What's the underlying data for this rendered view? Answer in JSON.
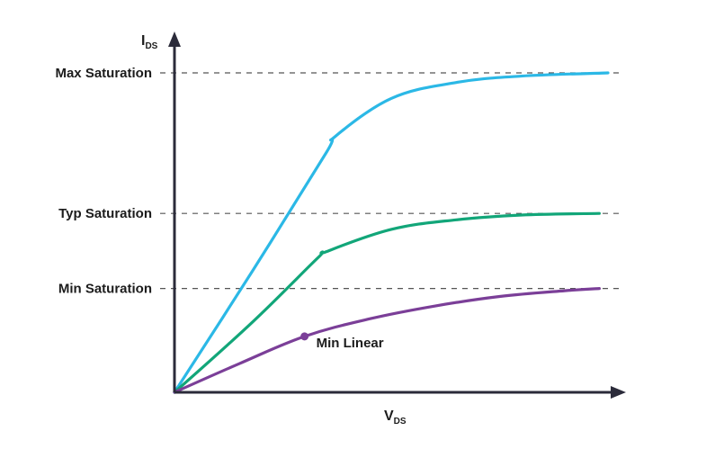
{
  "chart_data": {
    "type": "line",
    "xlabel": {
      "main": "V",
      "sub": "DS"
    },
    "ylabel": {
      "main": "I",
      "sub": "DS"
    },
    "y_ticks": [
      {
        "label": "Max Saturation",
        "value": 1.0
      },
      {
        "label": "Typ Saturation",
        "value": 0.56
      },
      {
        "label": "Min Saturation",
        "value": 0.325
      }
    ],
    "xlim": [
      0,
      1
    ],
    "ylim": [
      0,
      1
    ],
    "grid": "dashed lines at saturation levels",
    "series": [
      {
        "color": "#2bb8e6",
        "x": [
          0,
          0.18,
          0.35,
          0.37,
          0.5,
          0.65,
          0.8,
          1.0
        ],
        "y": [
          0,
          0.38,
          0.75,
          0.8,
          0.92,
          0.97,
          0.99,
          1.0
        ]
      },
      {
        "color": "#12a679",
        "x": [
          0,
          0.18,
          0.33,
          0.35,
          0.5,
          0.65,
          0.8,
          0.98
        ],
        "y": [
          0,
          0.22,
          0.42,
          0.44,
          0.51,
          0.54,
          0.555,
          0.56
        ]
      },
      {
        "color": "#7b3f98",
        "x": [
          0,
          0.15,
          0.3,
          0.45,
          0.6,
          0.75,
          0.9,
          0.98
        ],
        "y": [
          0,
          0.09,
          0.175,
          0.23,
          0.27,
          0.3,
          0.318,
          0.325
        ]
      }
    ],
    "annotations": [
      {
        "text": "Min Linear",
        "series": 2,
        "x": 0.3,
        "y": 0.175
      }
    ]
  }
}
